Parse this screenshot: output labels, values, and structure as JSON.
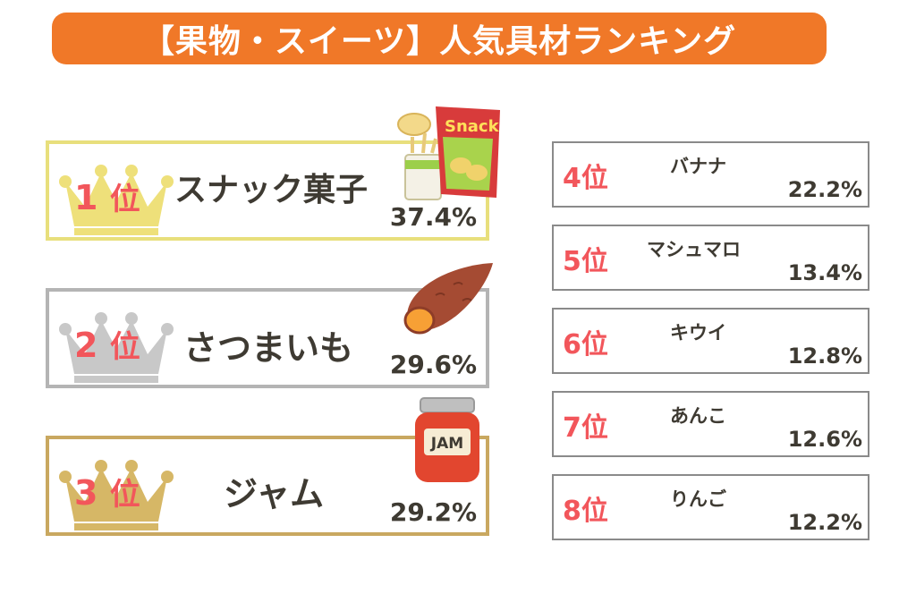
{
  "title": "【果物・スイーツ】人気具材ランキング",
  "top_ranks": [
    {
      "rank": "1",
      "suffix": "位",
      "name": "スナック菓子",
      "percent": "37.4%",
      "crown_color": "#eee07a",
      "illustration": "snack-icon",
      "snack_label": "Snack"
    },
    {
      "rank": "2",
      "suffix": "位",
      "name": "さつまいも",
      "percent": "29.6%",
      "crown_color": "#c8c8c8",
      "illustration": "sweet-potato-icon"
    },
    {
      "rank": "3",
      "suffix": "位",
      "name": "ジャム",
      "percent": "29.2%",
      "crown_color": "#d6b766",
      "illustration": "jam-jar-icon",
      "jam_label": "JAM"
    }
  ],
  "other_ranks": [
    {
      "rank": "4位",
      "name": "バナナ",
      "percent": "22.2%"
    },
    {
      "rank": "5位",
      "name": "マシュマロ",
      "percent": "13.4%"
    },
    {
      "rank": "6位",
      "name": "キウイ",
      "percent": "12.8%"
    },
    {
      "rank": "7位",
      "name": "あんこ",
      "percent": "12.6%"
    },
    {
      "rank": "8位",
      "name": "りんご",
      "percent": "12.2%"
    }
  ],
  "colors": {
    "banner": "#f07828",
    "rank_text": "#f2565b",
    "body_text": "#3e3a32"
  }
}
